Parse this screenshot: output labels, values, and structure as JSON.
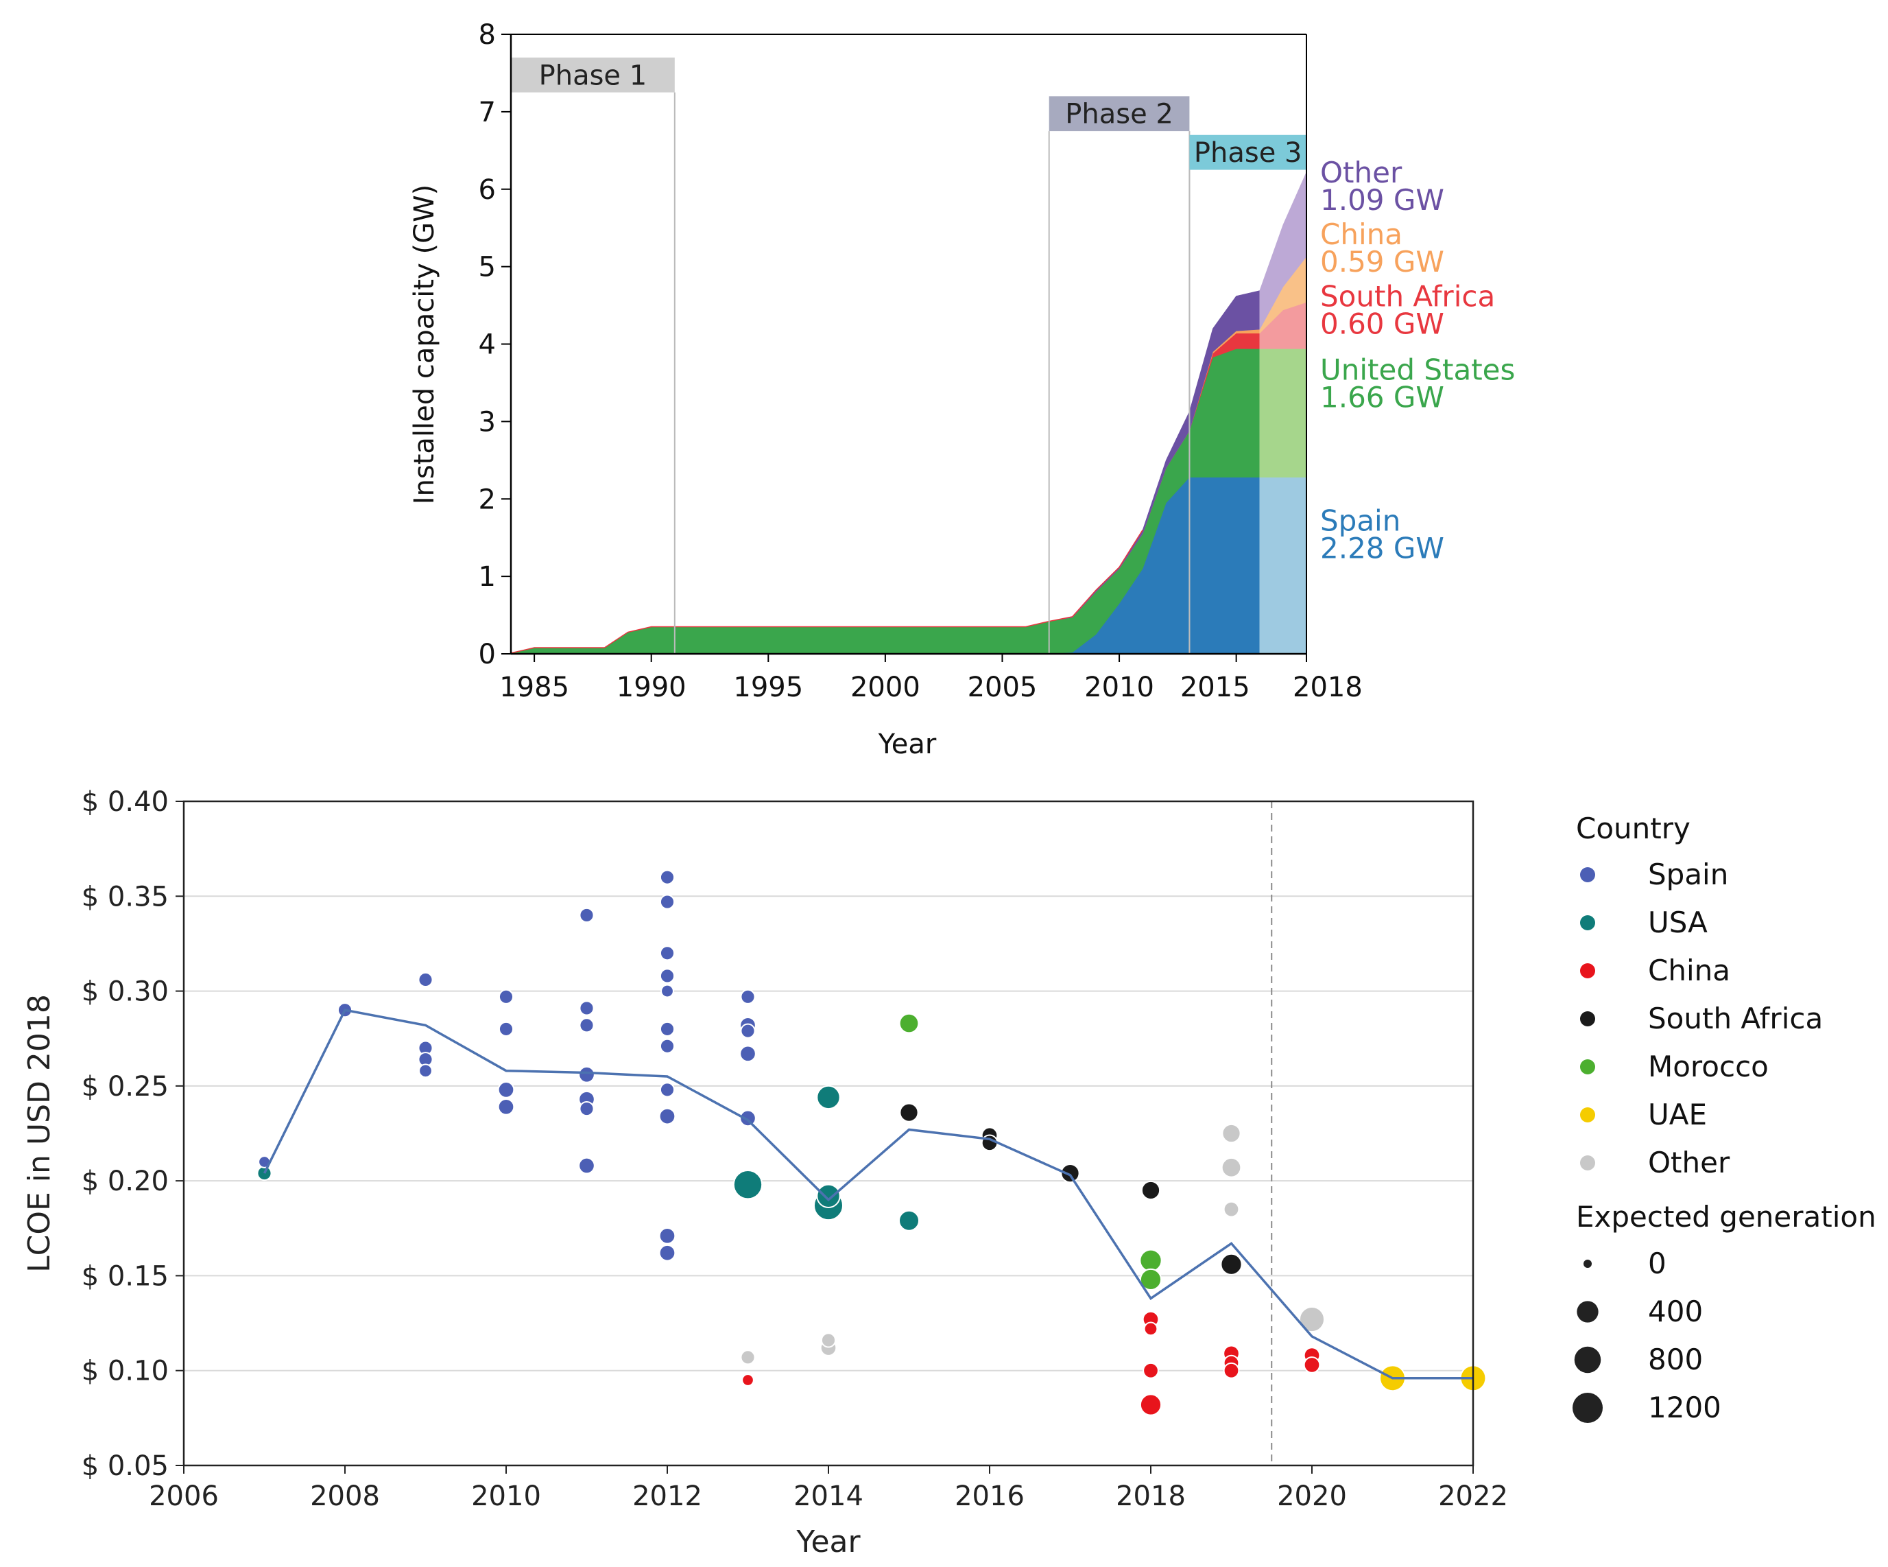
{
  "colors": {
    "spain": "#2b7bb9",
    "spain_proj": "#9ecae1",
    "us": "#3aa64c",
    "us_proj": "#a6d68c",
    "sa": "#e8373f",
    "sa_proj": "#f39b9e",
    "china": "#f7a25c",
    "china_proj": "#f9c188",
    "other": "#6b51a3",
    "other_proj": "#bda9d6",
    "phase1": "#cfcfcf",
    "phase2": "#a7aabf",
    "phase3": "#7ccad9",
    "line": "#4c72b0",
    "pt_spain": "#4c5fb5",
    "pt_usa": "#0f7c79",
    "pt_china": "#e8141c",
    "pt_sa": "#1a1a1a",
    "pt_morocco": "#4caf2f",
    "pt_uae": "#f5cc00",
    "pt_other": "#c8c8c8"
  },
  "chart_data": [
    {
      "type": "area",
      "xlabel": "Year",
      "ylabel": "Installed capacity (GW)",
      "xlim": [
        1984,
        2018
      ],
      "ylim": [
        0,
        8
      ],
      "xticks": [
        "1985",
        "1990",
        "1995",
        "2000",
        "2005",
        "2010",
        "2015",
        "2018"
      ],
      "yticks": [
        "0",
        "1",
        "2",
        "3",
        "4",
        "5",
        "6",
        "7",
        "8"
      ],
      "phases": [
        {
          "label": "Phase 1",
          "start": 1984,
          "end": 1991,
          "y_top": 7.7,
          "y_bottom": 7.25
        },
        {
          "label": "Phase 2",
          "start": 2007,
          "end": 2013,
          "y_top": 7.2,
          "y_bottom": 6.75
        },
        {
          "label": "Phase 3",
          "start": 2013,
          "end": 2018,
          "y_top": 6.7,
          "y_bottom": 6.25
        }
      ],
      "projection_start": 2016,
      "x": [
        1984,
        1985,
        1986,
        1987,
        1988,
        1989,
        1990,
        1991,
        1995,
        2000,
        2005,
        2006,
        2007,
        2008,
        2009,
        2010,
        2011,
        2012,
        2013,
        2014,
        2015,
        2016,
        2017,
        2018
      ],
      "series": [
        {
          "name": "Spain",
          "values": [
            0,
            0,
            0,
            0,
            0,
            0,
            0,
            0,
            0,
            0,
            0,
            0,
            0,
            0.02,
            0.25,
            0.65,
            1.1,
            1.95,
            2.28,
            2.28,
            2.28,
            2.28,
            2.28,
            2.28
          ]
        },
        {
          "name": "United States",
          "values": [
            0.01,
            0.08,
            0.08,
            0.08,
            0.08,
            0.28,
            0.35,
            0.35,
            0.35,
            0.35,
            0.35,
            0.35,
            0.42,
            0.45,
            0.55,
            0.45,
            0.45,
            0.45,
            0.6,
            1.55,
            1.66,
            1.66,
            1.66,
            1.66
          ]
        },
        {
          "name": "South Africa",
          "values": [
            0,
            0,
            0,
            0,
            0,
            0,
            0,
            0,
            0,
            0,
            0,
            0,
            0,
            0,
            0,
            0,
            0,
            0,
            0,
            0.05,
            0.2,
            0.2,
            0.5,
            0.6
          ]
        },
        {
          "name": "China",
          "values": [
            0,
            0,
            0,
            0,
            0,
            0,
            0,
            0,
            0,
            0,
            0,
            0,
            0,
            0,
            0,
            0,
            0,
            0,
            0,
            0.02,
            0.03,
            0.05,
            0.3,
            0.59
          ]
        },
        {
          "name": "Other",
          "values": [
            0,
            0,
            0,
            0,
            0,
            0,
            0,
            0,
            0,
            0,
            0,
            0,
            0,
            0.01,
            0.02,
            0.02,
            0.05,
            0.1,
            0.25,
            0.3,
            0.45,
            0.5,
            0.8,
            1.09
          ]
        }
      ],
      "labels": [
        {
          "name": "Other",
          "value": "1.09 GW",
          "y": 6.0
        },
        {
          "name": "China",
          "value": "0.59 GW",
          "y": 5.2
        },
        {
          "name": "South Africa",
          "value": "0.60 GW",
          "y": 4.4
        },
        {
          "name": "United States",
          "value": "1.66 GW",
          "y": 3.45
        },
        {
          "name": "Spain",
          "value": "2.28 GW",
          "y": 1.5
        }
      ]
    },
    {
      "type": "scatter",
      "xlabel": "Year",
      "ylabel": "LCOE in USD 2018",
      "xlim": [
        2006,
        2022
      ],
      "ylim": [
        0.05,
        0.4
      ],
      "xticks": [
        "2006",
        "2008",
        "2010",
        "2012",
        "2014",
        "2016",
        "2018",
        "2020",
        "2022"
      ],
      "yticks": [
        "$ 0.05",
        "$ 0.10",
        "$ 0.15",
        "$ 0.20",
        "$ 0.25",
        "$ 0.30",
        "$ 0.35",
        "$ 0.40"
      ],
      "dashed_vline": 2019.5,
      "mean_line": {
        "x": [
          2007,
          2008,
          2009,
          2010,
          2011,
          2012,
          2013,
          2014,
          2015,
          2016,
          2017,
          2018,
          2019,
          2020,
          2021,
          2022
        ],
        "y": [
          0.204,
          0.29,
          0.282,
          0.258,
          0.257,
          0.255,
          0.232,
          0.19,
          0.227,
          0.222,
          0.203,
          0.138,
          0.167,
          0.118,
          0.096,
          0.096
        ]
      },
      "points": [
        {
          "country": "Spain",
          "x": 2007,
          "y": 0.21,
          "gen": 10
        },
        {
          "country": "USA",
          "x": 2007,
          "y": 0.204,
          "gen": 50
        },
        {
          "country": "Spain",
          "x": 2008,
          "y": 0.29,
          "gen": 50
        },
        {
          "country": "Spain",
          "x": 2009,
          "y": 0.306,
          "gen": 50
        },
        {
          "country": "Spain",
          "x": 2009,
          "y": 0.27,
          "gen": 50
        },
        {
          "country": "Spain",
          "x": 2009,
          "y": 0.264,
          "gen": 50
        },
        {
          "country": "Spain",
          "x": 2009,
          "y": 0.258,
          "gen": 30
        },
        {
          "country": "Spain",
          "x": 2010,
          "y": 0.297,
          "gen": 50
        },
        {
          "country": "Spain",
          "x": 2010,
          "y": 0.28,
          "gen": 50
        },
        {
          "country": "Spain",
          "x": 2010,
          "y": 0.248,
          "gen": 100
        },
        {
          "country": "Spain",
          "x": 2010,
          "y": 0.239,
          "gen": 100
        },
        {
          "country": "Spain",
          "x": 2011,
          "y": 0.34,
          "gen": 50
        },
        {
          "country": "Spain",
          "x": 2011,
          "y": 0.291,
          "gen": 50
        },
        {
          "country": "Spain",
          "x": 2011,
          "y": 0.282,
          "gen": 50
        },
        {
          "country": "Spain",
          "x": 2011,
          "y": 0.256,
          "gen": 100
        },
        {
          "country": "Spain",
          "x": 2011,
          "y": 0.243,
          "gen": 100
        },
        {
          "country": "Spain",
          "x": 2011,
          "y": 0.238,
          "gen": 50
        },
        {
          "country": "Spain",
          "x": 2011,
          "y": 0.208,
          "gen": 100
        },
        {
          "country": "Spain",
          "x": 2012,
          "y": 0.36,
          "gen": 50
        },
        {
          "country": "Spain",
          "x": 2012,
          "y": 0.347,
          "gen": 50
        },
        {
          "country": "Spain",
          "x": 2012,
          "y": 0.32,
          "gen": 50
        },
        {
          "country": "Spain",
          "x": 2012,
          "y": 0.308,
          "gen": 50
        },
        {
          "country": "Spain",
          "x": 2012,
          "y": 0.3,
          "gen": 20
        },
        {
          "country": "Spain",
          "x": 2012,
          "y": 0.28,
          "gen": 50
        },
        {
          "country": "Spain",
          "x": 2012,
          "y": 0.271,
          "gen": 50
        },
        {
          "country": "Spain",
          "x": 2012,
          "y": 0.248,
          "gen": 50
        },
        {
          "country": "Spain",
          "x": 2012,
          "y": 0.234,
          "gen": 100
        },
        {
          "country": "Spain",
          "x": 2012,
          "y": 0.171,
          "gen": 100
        },
        {
          "country": "Spain",
          "x": 2012,
          "y": 0.162,
          "gen": 100
        },
        {
          "country": "Spain",
          "x": 2013,
          "y": 0.297,
          "gen": 50
        },
        {
          "country": "Spain",
          "x": 2013,
          "y": 0.282,
          "gen": 100
        },
        {
          "country": "Spain",
          "x": 2013,
          "y": 0.279,
          "gen": 50
        },
        {
          "country": "Spain",
          "x": 2013,
          "y": 0.267,
          "gen": 100
        },
        {
          "country": "Spain",
          "x": 2013,
          "y": 0.233,
          "gen": 100
        },
        {
          "country": "USA",
          "x": 2013,
          "y": 0.198,
          "gen": 1000
        },
        {
          "country": "Other",
          "x": 2013,
          "y": 0.107,
          "gen": 50
        },
        {
          "country": "China",
          "x": 2013,
          "y": 0.095,
          "gen": 10
        },
        {
          "country": "USA",
          "x": 2014,
          "y": 0.244,
          "gen": 500
        },
        {
          "country": "USA",
          "x": 2014,
          "y": 0.192,
          "gen": 500
        },
        {
          "country": "USA",
          "x": 2014,
          "y": 0.187,
          "gen": 1050
        },
        {
          "country": "Other",
          "x": 2014,
          "y": 0.116,
          "gen": 50
        },
        {
          "country": "Other",
          "x": 2014,
          "y": 0.112,
          "gen": 100
        },
        {
          "country": "Morocco",
          "x": 2015,
          "y": 0.283,
          "gen": 250
        },
        {
          "country": "South Africa",
          "x": 2015,
          "y": 0.236,
          "gen": 200
        },
        {
          "country": "USA",
          "x": 2015,
          "y": 0.179,
          "gen": 300
        },
        {
          "country": "South Africa",
          "x": 2016,
          "y": 0.224,
          "gen": 100
        },
        {
          "country": "South Africa",
          "x": 2016,
          "y": 0.22,
          "gen": 100
        },
        {
          "country": "South Africa",
          "x": 2017,
          "y": 0.204,
          "gen": 200
        },
        {
          "country": "South Africa",
          "x": 2018,
          "y": 0.195,
          "gen": 200
        },
        {
          "country": "Morocco",
          "x": 2018,
          "y": 0.158,
          "gen": 400
        },
        {
          "country": "Morocco",
          "x": 2018,
          "y": 0.148,
          "gen": 350
        },
        {
          "country": "China",
          "x": 2018,
          "y": 0.127,
          "gen": 100
        },
        {
          "country": "China",
          "x": 2018,
          "y": 0.122,
          "gen": 30
        },
        {
          "country": "China",
          "x": 2018,
          "y": 0.1,
          "gen": 80
        },
        {
          "country": "China",
          "x": 2018,
          "y": 0.082,
          "gen": 350
        },
        {
          "country": "Other",
          "x": 2019,
          "y": 0.225,
          "gen": 200
        },
        {
          "country": "Other",
          "x": 2019,
          "y": 0.207,
          "gen": 250
        },
        {
          "country": "Other",
          "x": 2019,
          "y": 0.185,
          "gen": 80
        },
        {
          "country": "South Africa",
          "x": 2019,
          "y": 0.156,
          "gen": 350
        },
        {
          "country": "China",
          "x": 2019,
          "y": 0.109,
          "gen": 100
        },
        {
          "country": "China",
          "x": 2019,
          "y": 0.104,
          "gen": 80
        },
        {
          "country": "China",
          "x": 2019,
          "y": 0.1,
          "gen": 80
        },
        {
          "country": "Other",
          "x": 2020,
          "y": 0.127,
          "gen": 650
        },
        {
          "country": "China",
          "x": 2020,
          "y": 0.108,
          "gen": 100
        },
        {
          "country": "China",
          "x": 2020,
          "y": 0.103,
          "gen": 100
        },
        {
          "country": "UAE",
          "x": 2021,
          "y": 0.096,
          "gen": 700
        },
        {
          "country": "UAE",
          "x": 2022,
          "y": 0.096,
          "gen": 700
        }
      ],
      "legend": {
        "country_title": "Country",
        "countries": [
          "Spain",
          "USA",
          "China",
          "South Africa",
          "Morocco",
          "UAE",
          "Other"
        ],
        "size_title": "Expected generation",
        "sizes": [
          0,
          400,
          800,
          1200
        ],
        "size_labels": [
          "0",
          "400",
          "800",
          "1200"
        ]
      }
    }
  ]
}
